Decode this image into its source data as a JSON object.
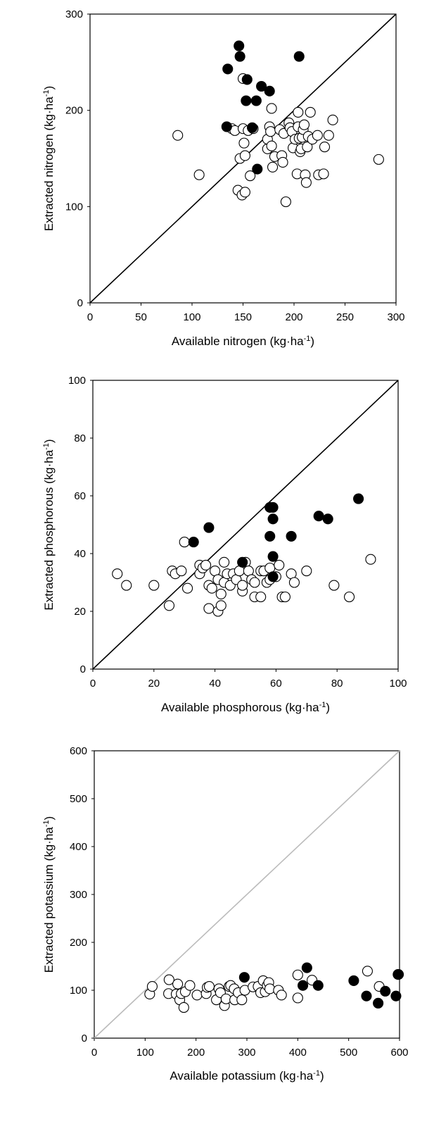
{
  "chart_data": [
    {
      "type": "scatter",
      "id": "nitrogen",
      "xlabel_main": "Available nitrogen (kg·ha",
      "xlabel_sup": "-1",
      "xlabel_close": ")",
      "ylabel_main": "Extracted nitrogen (kg·ha",
      "ylabel_sup": "-1",
      "ylabel_close": ")",
      "xlim": [
        0,
        300
      ],
      "ylim": [
        0,
        300
      ],
      "xticks": [
        "0",
        "50",
        "100",
        "150",
        "200",
        "250",
        "300"
      ],
      "xtick_values": [
        0,
        50,
        100,
        150,
        200,
        250,
        300
      ],
      "yticks": [
        "0",
        "100",
        "200",
        "300"
      ],
      "ytick_values": [
        0,
        100,
        200,
        300
      ],
      "reference_line": {
        "from": [
          0,
          0
        ],
        "to": [
          300,
          300
        ],
        "color": "#000000"
      },
      "series": [
        {
          "name": "filled",
          "fill": "#000000",
          "points": [
            [
              135,
              243
            ],
            [
              146,
              267
            ],
            [
              147,
              256
            ],
            [
              154,
              232
            ],
            [
              153,
              210
            ],
            [
              163,
              210
            ],
            [
              168,
              225
            ],
            [
              176,
              220
            ],
            [
              205,
              256
            ],
            [
              134,
              183
            ],
            [
              159,
              182
            ],
            [
              164,
              139
            ]
          ]
        },
        {
          "name": "open",
          "fill": "#ffffff",
          "points": [
            [
              86,
              174
            ],
            [
              107,
              133
            ],
            [
              139,
              181
            ],
            [
              142,
              179
            ],
            [
              150,
              181
            ],
            [
              155,
              179
            ],
            [
              150,
              233
            ],
            [
              147,
              150
            ],
            [
              152,
              153
            ],
            [
              151,
              166
            ],
            [
              145,
              117
            ],
            [
              149,
              112
            ],
            [
              152,
              115
            ],
            [
              157,
              132
            ],
            [
              160,
              181
            ],
            [
              174,
              160
            ],
            [
              176,
              183
            ],
            [
              174,
              170
            ],
            [
              177,
              178
            ],
            [
              178,
              163
            ],
            [
              179,
              141
            ],
            [
              181,
              152
            ],
            [
              186,
              180
            ],
            [
              188,
              153
            ],
            [
              189,
              146
            ],
            [
              190,
              176
            ],
            [
              192,
              105
            ],
            [
              195,
              187
            ],
            [
              196,
              182
            ],
            [
              198,
              178
            ],
            [
              199,
              161
            ],
            [
              201,
              170
            ],
            [
              203,
              134
            ],
            [
              204,
              183
            ],
            [
              204,
              198
            ],
            [
              205,
              171
            ],
            [
              206,
              157
            ],
            [
              207,
              160
            ],
            [
              208,
              172
            ],
            [
              209,
              180
            ],
            [
              210,
              185
            ],
            [
              211,
              133
            ],
            [
              212,
              125
            ],
            [
              213,
              162
            ],
            [
              214,
              173
            ],
            [
              216,
              198
            ],
            [
              218,
              170
            ],
            [
              223,
              174
            ],
            [
              224,
              133
            ],
            [
              229,
              134
            ],
            [
              230,
              162
            ],
            [
              234,
              174
            ],
            [
              238,
              190
            ],
            [
              283,
              149
            ],
            [
              178,
              202
            ]
          ]
        }
      ]
    },
    {
      "type": "scatter",
      "id": "phosphorous",
      "xlabel_main": "Available phosphorous (kg·ha",
      "xlabel_sup": "-1",
      "xlabel_close": ")",
      "ylabel_main": "Extracted phosphorous (kg·ha",
      "ylabel_sup": "-1",
      "ylabel_close": ")",
      "xlim": [
        0,
        100
      ],
      "ylim": [
        0,
        100
      ],
      "xticks": [
        "0",
        "20",
        "40",
        "60",
        "80",
        "100"
      ],
      "xtick_values": [
        0,
        20,
        40,
        60,
        80,
        100
      ],
      "yticks": [
        "0",
        "20",
        "40",
        "60",
        "80",
        "100"
      ],
      "ytick_values": [
        0,
        20,
        40,
        60,
        80,
        100
      ],
      "reference_line": {
        "from": [
          0,
          0
        ],
        "to": [
          100,
          100
        ],
        "color": "#000000"
      },
      "series": [
        {
          "name": "filled",
          "fill": "#000000",
          "points": [
            [
              33,
              44
            ],
            [
              38,
              49
            ],
            [
              49,
              37
            ],
            [
              58,
              56
            ],
            [
              59,
              56
            ],
            [
              59,
              52
            ],
            [
              58,
              46
            ],
            [
              59,
              39
            ],
            [
              59,
              32
            ],
            [
              65,
              46
            ],
            [
              74,
              53
            ],
            [
              77,
              52
            ],
            [
              87,
              59
            ]
          ]
        },
        {
          "name": "open",
          "fill": "#ffffff",
          "points": [
            [
              8,
              33
            ],
            [
              11,
              29
            ],
            [
              20,
              29
            ],
            [
              25,
              22
            ],
            [
              26,
              34
            ],
            [
              27,
              33
            ],
            [
              29,
              34
            ],
            [
              30,
              44
            ],
            [
              31,
              28
            ],
            [
              35,
              36
            ],
            [
              35,
              33
            ],
            [
              36,
              35
            ],
            [
              37,
              36
            ],
            [
              38,
              29
            ],
            [
              38,
              21
            ],
            [
              39,
              28
            ],
            [
              40,
              34
            ],
            [
              41,
              31
            ],
            [
              41,
              20
            ],
            [
              42,
              26
            ],
            [
              42,
              22
            ],
            [
              43,
              37
            ],
            [
              43,
              30
            ],
            [
              44,
              33
            ],
            [
              45,
              29
            ],
            [
              46,
              33
            ],
            [
              47,
              31
            ],
            [
              48,
              34
            ],
            [
              49,
              27
            ],
            [
              49,
              29
            ],
            [
              50,
              37
            ],
            [
              51,
              34
            ],
            [
              52,
              31
            ],
            [
              53,
              25
            ],
            [
              53,
              30
            ],
            [
              55,
              25
            ],
            [
              55,
              34
            ],
            [
              56,
              34
            ],
            [
              57,
              30
            ],
            [
              58,
              31
            ],
            [
              58,
              35
            ],
            [
              60,
              32
            ],
            [
              61,
              36
            ],
            [
              62,
              25
            ],
            [
              63,
              25
            ],
            [
              65,
              33
            ],
            [
              66,
              30
            ],
            [
              70,
              34
            ],
            [
              79,
              29
            ],
            [
              84,
              25
            ],
            [
              91,
              38
            ]
          ]
        }
      ]
    },
    {
      "type": "scatter",
      "id": "potassium",
      "xlabel_main": "Available potassium (kg·ha",
      "xlabel_sup": "-1",
      "xlabel_close": ")",
      "ylabel_main": "Extracted potassium (kg·ha",
      "ylabel_sup": "-1",
      "ylabel_close": ")",
      "xlim": [
        0,
        600
      ],
      "ylim": [
        0,
        600
      ],
      "xticks": [
        "0",
        "100",
        "200",
        "300",
        "400",
        "500",
        "600"
      ],
      "xtick_values": [
        0,
        100,
        200,
        300,
        400,
        500,
        600
      ],
      "yticks": [
        "0",
        "100",
        "200",
        "300",
        "400",
        "500",
        "600"
      ],
      "ytick_values": [
        0,
        100,
        200,
        300,
        400,
        500,
        600
      ],
      "reference_line": {
        "from": [
          0,
          0
        ],
        "to": [
          600,
          600
        ],
        "color": "#bbbbbb"
      },
      "series": [
        {
          "name": "filled",
          "fill": "#000000",
          "points": [
            [
              295,
              127
            ],
            [
              418,
              147
            ],
            [
              410,
              110
            ],
            [
              440,
              110
            ],
            [
              510,
              120
            ],
            [
              535,
              88
            ],
            [
              558,
              73
            ],
            [
              572,
              98
            ],
            [
              593,
              88
            ],
            [
              598,
              133
            ]
          ]
        },
        {
          "name": "open",
          "fill": "#ffffff",
          "points": [
            [
              109,
              92
            ],
            [
              114,
              108
            ],
            [
              146,
              93
            ],
            [
              147,
              122
            ],
            [
              161,
              92
            ],
            [
              164,
              113
            ],
            [
              168,
              80
            ],
            [
              171,
              93
            ],
            [
              176,
              64
            ],
            [
              179,
              97
            ],
            [
              188,
              110
            ],
            [
              202,
              90
            ],
            [
              220,
              93
            ],
            [
              222,
              106
            ],
            [
              226,
              108
            ],
            [
              240,
              80
            ],
            [
              245,
              103
            ],
            [
              248,
              95
            ],
            [
              256,
              68
            ],
            [
              259,
              82
            ],
            [
              265,
              108
            ],
            [
              268,
              110
            ],
            [
              275,
              103
            ],
            [
              276,
              80
            ],
            [
              283,
              95
            ],
            [
              290,
              80
            ],
            [
              296,
              100
            ],
            [
              312,
              107
            ],
            [
              322,
              108
            ],
            [
              327,
              95
            ],
            [
              332,
              120
            ],
            [
              336,
              97
            ],
            [
              340,
              110
            ],
            [
              343,
              116
            ],
            [
              345,
              103
            ],
            [
              362,
              100
            ],
            [
              368,
              90
            ],
            [
              400,
              84
            ],
            [
              400,
              132
            ],
            [
              428,
              121
            ],
            [
              537,
              140
            ],
            [
              560,
              108
            ],
            [
              597,
              133
            ]
          ]
        }
      ]
    }
  ]
}
